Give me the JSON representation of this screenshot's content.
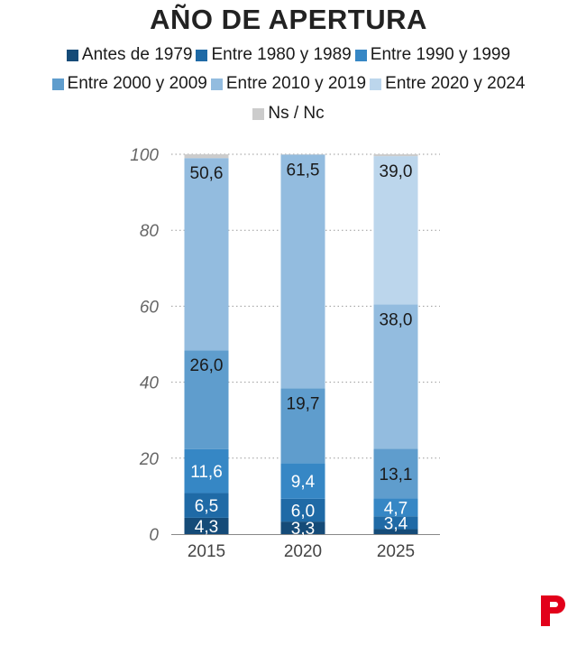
{
  "title": "AÑO DE APERTURA",
  "chart_data": {
    "type": "bar",
    "stacked": true,
    "title": "AÑO DE APERTURA",
    "xlabel": "",
    "ylabel": "",
    "categories": [
      "2015",
      "2020",
      "2025"
    ],
    "ylim": [
      0,
      100
    ],
    "yticks": [
      "0",
      "20",
      "40",
      "60",
      "80",
      "100"
    ],
    "grid": true,
    "legend_position": "top",
    "series": [
      {
        "name": "Antes de 1979",
        "color": "#154b78",
        "values": [
          4.3,
          3.3,
          1.3
        ],
        "labels": [
          "4,3",
          "3,3",
          ""
        ],
        "label_colors": [
          "#ffffff",
          "#ffffff",
          "#ffffff"
        ]
      },
      {
        "name": "Entre 1980 y 1989",
        "color": "#1f6aa6",
        "values": [
          6.5,
          6.0,
          3.4
        ],
        "labels": [
          "6,5",
          "6,0",
          "3,4"
        ],
        "label_colors": [
          "#ffffff",
          "#ffffff",
          "#ffffff"
        ]
      },
      {
        "name": "Entre 1990 y 1999",
        "color": "#3687c5",
        "values": [
          11.6,
          9.4,
          4.7
        ],
        "labels": [
          "11,6",
          "9,4",
          "4,7"
        ],
        "label_colors": [
          "#ffffff",
          "#ffffff",
          "#ffffff"
        ]
      },
      {
        "name": "Entre 2000 y 2009",
        "color": "#5f9dcd",
        "values": [
          26.0,
          19.7,
          13.1
        ],
        "labels": [
          "26,0",
          "19,7",
          "13,1"
        ],
        "label_colors": [
          "#1a1a1a",
          "#1a1a1a",
          "#1a1a1a"
        ]
      },
      {
        "name": "Entre 2010 y 2019",
        "color": "#93bcdf",
        "values": [
          50.6,
          61.5,
          38.0
        ],
        "labels": [
          "50,6",
          "61,5",
          "38,0"
        ],
        "label_colors": [
          "#1a1a1a",
          "#1a1a1a",
          "#1a1a1a"
        ]
      },
      {
        "name": "Entre 2020 y 2024",
        "color": "#bcd6ec",
        "values": [
          0,
          0,
          39.0
        ],
        "labels": [
          "",
          "",
          "39,0"
        ],
        "label_colors": [
          "#1a1a1a",
          "#1a1a1a",
          "#1a1a1a"
        ]
      },
      {
        "name": "Ns / Nc",
        "color": "#cccccc",
        "values": [
          1.0,
          0.1,
          0.5
        ],
        "labels": [
          "",
          "",
          ""
        ],
        "label_colors": [
          "#1a1a1a",
          "#1a1a1a",
          "#1a1a1a"
        ]
      }
    ]
  },
  "logo_color": "#e2001a"
}
